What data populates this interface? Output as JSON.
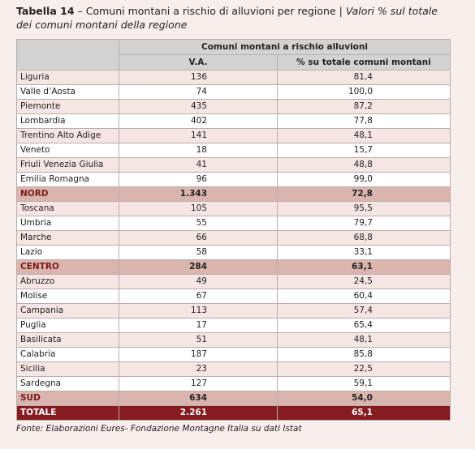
{
  "header": {
    "label": "Tabella 14",
    "title": "– Comuni montani a rischio di alluvioni per regione",
    "subtitle": "Valori % sul totale dei comuni montani della regione"
  },
  "table": {
    "group_header": "Comuni montani a rischio alluvioni",
    "columns": [
      "V.A.",
      "% su totale comuni montani"
    ],
    "groups": [
      {
        "rows": [
          [
            "Liguria",
            "136",
            "81,4"
          ],
          [
            "Valle d’Aosta",
            "74",
            "100,0"
          ],
          [
            "Piemonte",
            "435",
            "87,2"
          ],
          [
            "Lombardia",
            "402",
            "77,8"
          ],
          [
            "Trentino Alto Adige",
            "141",
            "48,1"
          ],
          [
            "Veneto",
            "18",
            "15,7"
          ],
          [
            "Friuli Venezia Giulia",
            "41",
            "48,8"
          ],
          [
            "Emilia Romagna",
            "96",
            "99,0"
          ]
        ],
        "subtotal": [
          "NORD",
          "1.343",
          "72,8"
        ]
      },
      {
        "rows": [
          [
            "Toscana",
            "105",
            "95,5"
          ],
          [
            "Umbria",
            "55",
            "79,7"
          ],
          [
            "Marche",
            "66",
            "68,8"
          ],
          [
            "Lazio",
            "58",
            "33,1"
          ]
        ],
        "subtotal": [
          "CENTRO",
          "284",
          "63,1"
        ]
      },
      {
        "rows": [
          [
            "Abruzzo",
            "49",
            "24,5"
          ],
          [
            "Molise",
            "67",
            "60,4"
          ],
          [
            "Campania",
            "113",
            "57,4"
          ],
          [
            "Puglia",
            "17",
            "65,4"
          ],
          [
            "Basilicata",
            "51",
            "48,1"
          ],
          [
            "Calabria",
            "187",
            "85,8"
          ],
          [
            "Sicilia",
            "23",
            "22,5"
          ],
          [
            "Sardegna",
            "127",
            "59,1"
          ]
        ],
        "subtotal": [
          "SUD",
          "634",
          "54,0"
        ]
      }
    ],
    "total": [
      "TOTALE",
      "2.261",
      "65,1"
    ]
  },
  "footer": {
    "source": "Fonte: Elaborazioni Eures- Fondazione Montagne Italia su dati Istat"
  }
}
